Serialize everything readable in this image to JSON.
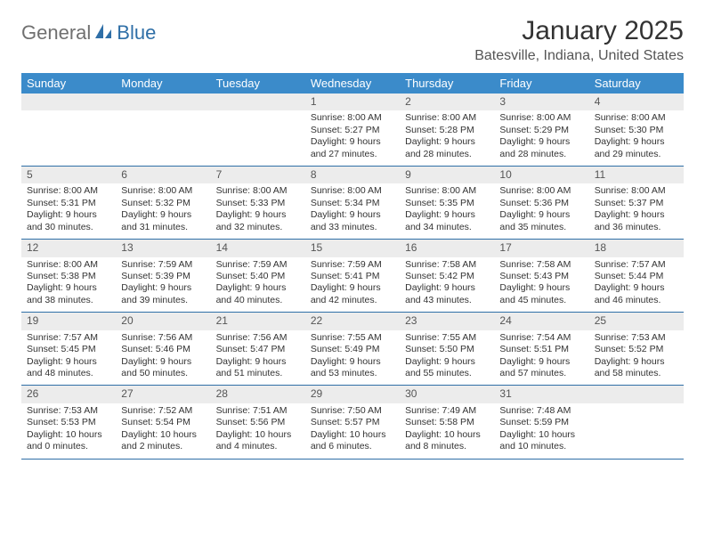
{
  "brand": {
    "general": "General",
    "blue": "Blue"
  },
  "title": "January 2025",
  "location": "Batesville, Indiana, United States",
  "colors": {
    "header_bg": "#3b8bca",
    "header_text": "#ffffff",
    "daynum_bg": "#ececec",
    "row_border": "#2f6fa7",
    "text": "#333333",
    "brand_gray": "#707070",
    "brand_blue": "#2f6fa7",
    "page_bg": "#ffffff"
  },
  "weekdays": [
    "Sunday",
    "Monday",
    "Tuesday",
    "Wednesday",
    "Thursday",
    "Friday",
    "Saturday"
  ],
  "weeks": [
    [
      null,
      null,
      null,
      {
        "n": "1",
        "sr": "8:00 AM",
        "ss": "5:27 PM",
        "dl": "9 hours and 27 minutes."
      },
      {
        "n": "2",
        "sr": "8:00 AM",
        "ss": "5:28 PM",
        "dl": "9 hours and 28 minutes."
      },
      {
        "n": "3",
        "sr": "8:00 AM",
        "ss": "5:29 PM",
        "dl": "9 hours and 28 minutes."
      },
      {
        "n": "4",
        "sr": "8:00 AM",
        "ss": "5:30 PM",
        "dl": "9 hours and 29 minutes."
      }
    ],
    [
      {
        "n": "5",
        "sr": "8:00 AM",
        "ss": "5:31 PM",
        "dl": "9 hours and 30 minutes."
      },
      {
        "n": "6",
        "sr": "8:00 AM",
        "ss": "5:32 PM",
        "dl": "9 hours and 31 minutes."
      },
      {
        "n": "7",
        "sr": "8:00 AM",
        "ss": "5:33 PM",
        "dl": "9 hours and 32 minutes."
      },
      {
        "n": "8",
        "sr": "8:00 AM",
        "ss": "5:34 PM",
        "dl": "9 hours and 33 minutes."
      },
      {
        "n": "9",
        "sr": "8:00 AM",
        "ss": "5:35 PM",
        "dl": "9 hours and 34 minutes."
      },
      {
        "n": "10",
        "sr": "8:00 AM",
        "ss": "5:36 PM",
        "dl": "9 hours and 35 minutes."
      },
      {
        "n": "11",
        "sr": "8:00 AM",
        "ss": "5:37 PM",
        "dl": "9 hours and 36 minutes."
      }
    ],
    [
      {
        "n": "12",
        "sr": "8:00 AM",
        "ss": "5:38 PM",
        "dl": "9 hours and 38 minutes."
      },
      {
        "n": "13",
        "sr": "7:59 AM",
        "ss": "5:39 PM",
        "dl": "9 hours and 39 minutes."
      },
      {
        "n": "14",
        "sr": "7:59 AM",
        "ss": "5:40 PM",
        "dl": "9 hours and 40 minutes."
      },
      {
        "n": "15",
        "sr": "7:59 AM",
        "ss": "5:41 PM",
        "dl": "9 hours and 42 minutes."
      },
      {
        "n": "16",
        "sr": "7:58 AM",
        "ss": "5:42 PM",
        "dl": "9 hours and 43 minutes."
      },
      {
        "n": "17",
        "sr": "7:58 AM",
        "ss": "5:43 PM",
        "dl": "9 hours and 45 minutes."
      },
      {
        "n": "18",
        "sr": "7:57 AM",
        "ss": "5:44 PM",
        "dl": "9 hours and 46 minutes."
      }
    ],
    [
      {
        "n": "19",
        "sr": "7:57 AM",
        "ss": "5:45 PM",
        "dl": "9 hours and 48 minutes."
      },
      {
        "n": "20",
        "sr": "7:56 AM",
        "ss": "5:46 PM",
        "dl": "9 hours and 50 minutes."
      },
      {
        "n": "21",
        "sr": "7:56 AM",
        "ss": "5:47 PM",
        "dl": "9 hours and 51 minutes."
      },
      {
        "n": "22",
        "sr": "7:55 AM",
        "ss": "5:49 PM",
        "dl": "9 hours and 53 minutes."
      },
      {
        "n": "23",
        "sr": "7:55 AM",
        "ss": "5:50 PM",
        "dl": "9 hours and 55 minutes."
      },
      {
        "n": "24",
        "sr": "7:54 AM",
        "ss": "5:51 PM",
        "dl": "9 hours and 57 minutes."
      },
      {
        "n": "25",
        "sr": "7:53 AM",
        "ss": "5:52 PM",
        "dl": "9 hours and 58 minutes."
      }
    ],
    [
      {
        "n": "26",
        "sr": "7:53 AM",
        "ss": "5:53 PM",
        "dl": "10 hours and 0 minutes."
      },
      {
        "n": "27",
        "sr": "7:52 AM",
        "ss": "5:54 PM",
        "dl": "10 hours and 2 minutes."
      },
      {
        "n": "28",
        "sr": "7:51 AM",
        "ss": "5:56 PM",
        "dl": "10 hours and 4 minutes."
      },
      {
        "n": "29",
        "sr": "7:50 AM",
        "ss": "5:57 PM",
        "dl": "10 hours and 6 minutes."
      },
      {
        "n": "30",
        "sr": "7:49 AM",
        "ss": "5:58 PM",
        "dl": "10 hours and 8 minutes."
      },
      {
        "n": "31",
        "sr": "7:48 AM",
        "ss": "5:59 PM",
        "dl": "10 hours and 10 minutes."
      },
      null
    ]
  ],
  "labels": {
    "sunrise": "Sunrise:",
    "sunset": "Sunset:",
    "daylight": "Daylight:"
  }
}
